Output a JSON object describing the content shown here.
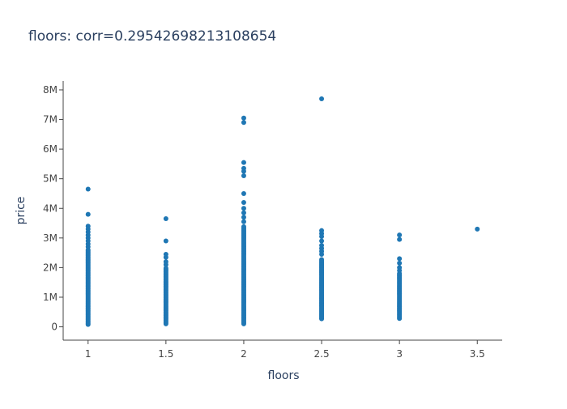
{
  "chart_data": {
    "type": "scatter",
    "title": "floors: corr=0.29542698213108654",
    "xlabel": "floors",
    "ylabel": "price",
    "xlim": [
      0.84,
      3.66
    ],
    "ylim": [
      -450000,
      8300000
    ],
    "x_ticks": [
      1,
      1.5,
      2,
      2.5,
      3,
      3.5
    ],
    "x_tick_labels": [
      "1",
      "1.5",
      "2",
      "2.5",
      "3",
      "3.5"
    ],
    "y_ticks": [
      0,
      1000000,
      2000000,
      3000000,
      4000000,
      5000000,
      6000000,
      7000000,
      8000000
    ],
    "y_tick_labels": [
      "0",
      "1M",
      "2M",
      "3M",
      "4M",
      "5M",
      "6M",
      "7M",
      "8M"
    ],
    "grid": false,
    "marker_color": "#1f77b4",
    "series": [
      {
        "points": [
          {
            "x": 1,
            "floor": 80000,
            "top": 2600000,
            "outliers": [
              2700000,
              2800000,
              2900000,
              3000000,
              3100000,
              3200000,
              3300000,
              3400000,
              3800000,
              4650000
            ]
          },
          {
            "x": 1.5,
            "floor": 100000,
            "top": 2000000,
            "outliers": [
              2100000,
              2200000,
              2350000,
              2450000,
              2900000,
              3650000
            ]
          },
          {
            "x": 2,
            "floor": 100000,
            "top": 3400000,
            "outliers": [
              3550000,
              3700000,
              3850000,
              4000000,
              4200000,
              4500000,
              5100000,
              5250000,
              5350000,
              5550000,
              6900000,
              7050000
            ]
          },
          {
            "x": 2.5,
            "floor": 270000,
            "top": 2300000,
            "outliers": [
              2450000,
              2550000,
              2650000,
              2750000,
              2900000,
              3050000,
              3150000,
              3250000,
              7700000
            ]
          },
          {
            "x": 3,
            "floor": 280000,
            "top": 1800000,
            "outliers": [
              1900000,
              2000000,
              2150000,
              2300000,
              2950000,
              3100000
            ]
          },
          {
            "x": 3.5,
            "floor": 3300000,
            "top": 3300000,
            "outliers": []
          }
        ]
      }
    ]
  }
}
